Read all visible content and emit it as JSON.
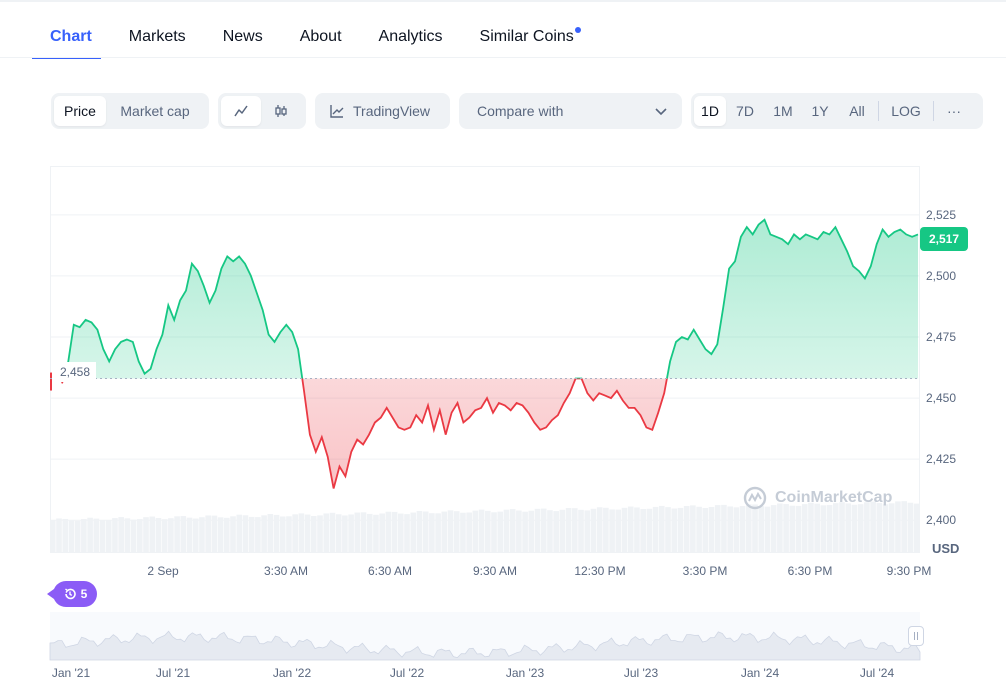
{
  "tabs": [
    {
      "label": "Chart"
    },
    {
      "label": "Markets"
    },
    {
      "label": "News"
    },
    {
      "label": "About"
    },
    {
      "label": "Analytics"
    },
    {
      "label": "Similar Coins"
    }
  ],
  "toolbar": {
    "type_toggle": {
      "price": "Price",
      "market_cap": "Market cap",
      "selected": "Price"
    },
    "chart_style": {
      "line_icon": "line-chart-icon",
      "candle_icon": "candlestick-icon",
      "selected": "line"
    },
    "tradingview_label": "TradingView",
    "compare_placeholder": "Compare with",
    "ranges": [
      "1D",
      "7D",
      "1M",
      "1Y",
      "All"
    ],
    "selected_range": "1D",
    "log_label": "LOG",
    "more_label": "···"
  },
  "chart_data": {
    "type": "area",
    "currency_label": "USD",
    "current_price_label": "2,517",
    "baseline_label": "2,458",
    "baseline_value": 2458,
    "ylim": [
      2387,
      2545
    ],
    "y_ticks": [
      "2,525",
      "2,500",
      "2,475",
      "2,450",
      "2,425",
      "2,400"
    ],
    "y_tick_values": [
      2525,
      2500,
      2475,
      2450,
      2425,
      2400
    ],
    "x_ticks": [
      "2 Sep",
      "3:30 AM",
      "6:30 AM",
      "9:30 AM",
      "12:30 PM",
      "3:30 PM",
      "6:30 PM",
      "9:30 PM"
    ],
    "up_color": "#16c784",
    "down_color": "#ea3943",
    "values": [
      2456,
      2464,
      2480,
      2479,
      2482,
      2481,
      2478,
      2470,
      2465,
      2470,
      2473,
      2474,
      2473,
      2465,
      2460,
      2462,
      2470,
      2476,
      2488,
      2482,
      2490,
      2494,
      2505,
      2502,
      2496,
      2489,
      2494,
      2503,
      2508,
      2506,
      2508,
      2505,
      2500,
      2493,
      2486,
      2476,
      2473,
      2477,
      2480,
      2477,
      2470,
      2453,
      2435,
      2428,
      2434,
      2426,
      2413,
      2422,
      2418,
      2428,
      2433,
      2431,
      2435,
      2440,
      2442,
      2446,
      2442,
      2438,
      2437,
      2438,
      2443,
      2440,
      2447,
      2437,
      2445,
      2435,
      2444,
      2448,
      2440,
      2442,
      2445,
      2446,
      2450,
      2444,
      2448,
      2447,
      2445,
      2448,
      2447,
      2444,
      2440,
      2437,
      2438,
      2441,
      2443,
      2448,
      2452,
      2458,
      2458,
      2452,
      2449,
      2452,
      2451,
      2450,
      2453,
      2449,
      2446,
      2446,
      2443,
      2438,
      2437,
      2444,
      2452,
      2465,
      2473,
      2475,
      2474,
      2478,
      2474,
      2470,
      2468,
      2472,
      2487,
      2503,
      2506,
      2516,
      2520,
      2517,
      2521,
      2523,
      2517,
      2516,
      2515,
      2513,
      2517,
      2515,
      2517,
      2516,
      2515,
      2518,
      2517,
      2520,
      2515,
      2510,
      2504,
      2502,
      2499,
      2504,
      2513,
      2519,
      2516,
      2518,
      2519,
      2517,
      2516,
      2517
    ],
    "volume_note": ""
  },
  "watermark": {
    "text": "CoinMarketCap",
    "icon": "coinmarketcap-logo-icon"
  },
  "events_badge": {
    "icon": "history-icon",
    "count": "5"
  },
  "navigator": {
    "x_ticks": [
      "Jan '21",
      "Jul '21",
      "Jan '22",
      "Jul '22",
      "Jan '23",
      "Jul '23",
      "Jan '24",
      "Jul '24"
    ],
    "handle_icon": "drag-handle-icon"
  }
}
